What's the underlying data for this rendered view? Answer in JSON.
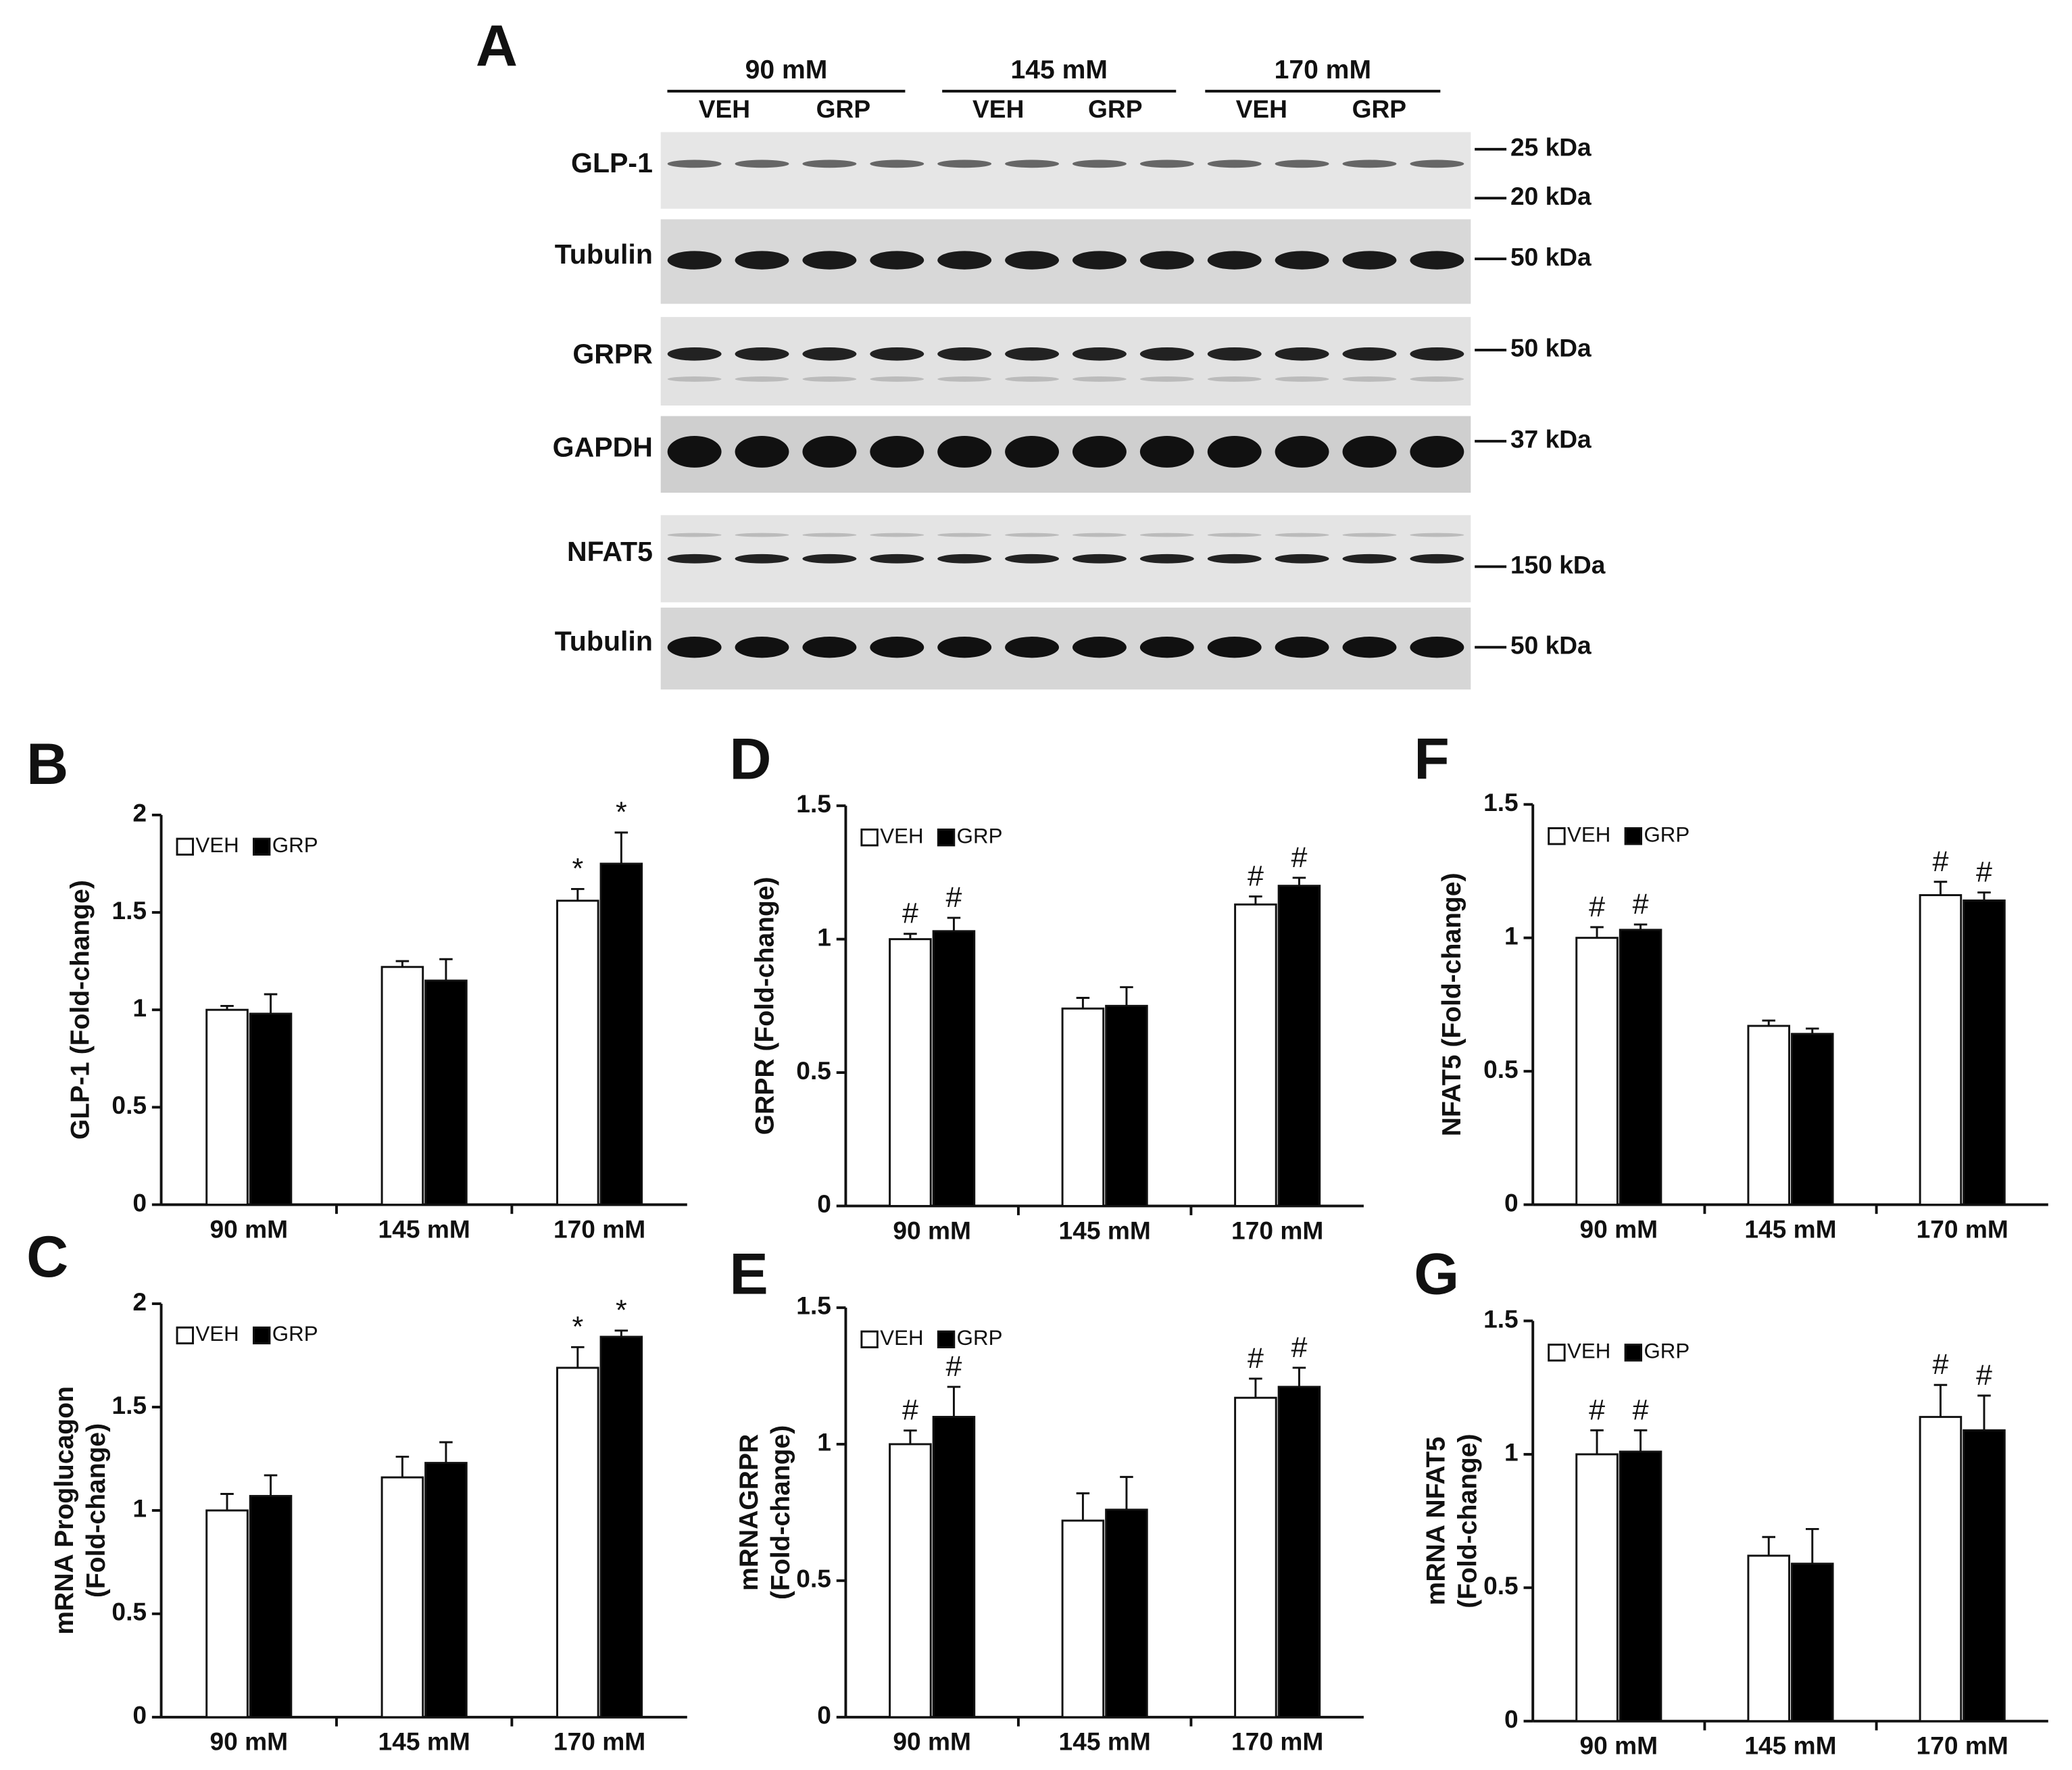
{
  "blot": {
    "label": "A",
    "groups": [
      {
        "name": "90 mM",
        "lanes": [
          "VEH",
          "GRP"
        ]
      },
      {
        "name": "145 mM",
        "lanes": [
          "VEH",
          "GRP"
        ]
      },
      {
        "name": "170 mM",
        "lanes": [
          "VEH",
          "GRP"
        ]
      }
    ],
    "rows": [
      {
        "name": "GLP-1",
        "markers": [
          "25 kDa",
          "20 kDa"
        ]
      },
      {
        "name": "Tubulin",
        "markers": [
          "50 kDa"
        ]
      },
      {
        "name": "GRPR",
        "markers": [
          "50 kDa"
        ]
      },
      {
        "name": "GAPDH",
        "markers": [
          "37 kDa"
        ]
      },
      {
        "name": "NFAT5",
        "markers": [
          "150 kDa"
        ]
      },
      {
        "name": "Tubulin",
        "markers": [
          "50 kDa"
        ]
      }
    ]
  },
  "chart_data": [
    {
      "type": "bar",
      "label": "B",
      "y_label": [
        "GLP-1 (Fold-change)"
      ],
      "categories": [
        "90 mM",
        "145 mM",
        "170 mM"
      ],
      "series": [
        {
          "name": "VEH",
          "color": "#ffffff",
          "values": [
            1.0,
            1.22,
            1.56
          ],
          "errors": [
            0.02,
            0.03,
            0.06
          ],
          "markers": [
            null,
            null,
            "*"
          ]
        },
        {
          "name": "GRP",
          "color": "#000000",
          "values": [
            0.98,
            1.15,
            1.75
          ],
          "errors": [
            0.1,
            0.11,
            0.16
          ],
          "markers": [
            null,
            null,
            "*"
          ]
        }
      ],
      "ylim": [
        0,
        2
      ],
      "yticks": [
        0,
        0.5,
        1,
        1.5,
        2
      ]
    },
    {
      "type": "bar",
      "label": "C",
      "y_label": [
        "mRNA Proglucagon",
        "(Fold-change)"
      ],
      "categories": [
        "90 mM",
        "145 mM",
        "170 mM"
      ],
      "series": [
        {
          "name": "VEH",
          "color": "#ffffff",
          "values": [
            1.0,
            1.16,
            1.69
          ],
          "errors": [
            0.08,
            0.1,
            0.1
          ],
          "markers": [
            null,
            null,
            "*"
          ]
        },
        {
          "name": "GRP",
          "color": "#000000",
          "values": [
            1.07,
            1.23,
            1.84
          ],
          "errors": [
            0.1,
            0.1,
            0.03
          ],
          "markers": [
            null,
            null,
            "*"
          ]
        }
      ],
      "ylim": [
        0,
        2
      ],
      "yticks": [
        0,
        0.5,
        1,
        1.5,
        2
      ]
    },
    {
      "type": "bar",
      "label": "D",
      "y_label": [
        "GRPR (Fold-change)"
      ],
      "categories": [
        "90 mM",
        "145 mM",
        "170 mM"
      ],
      "series": [
        {
          "name": "VEH",
          "color": "#ffffff",
          "values": [
            1.0,
            0.74,
            1.13
          ],
          "errors": [
            0.02,
            0.04,
            0.03
          ],
          "markers": [
            "#",
            null,
            "#"
          ]
        },
        {
          "name": "GRP",
          "color": "#000000",
          "values": [
            1.03,
            0.75,
            1.2
          ],
          "errors": [
            0.05,
            0.07,
            0.03
          ],
          "markers": [
            "#",
            null,
            "#"
          ]
        }
      ],
      "ylim": [
        0,
        1.5
      ],
      "yticks": [
        0,
        0.5,
        1,
        1.5
      ]
    },
    {
      "type": "bar",
      "label": "E",
      "y_label": [
        "mRNAGRPR",
        "(Fold-change)"
      ],
      "categories": [
        "90 mM",
        "145 mM",
        "170 mM"
      ],
      "series": [
        {
          "name": "VEH",
          "color": "#ffffff",
          "values": [
            1.0,
            0.72,
            1.17
          ],
          "errors": [
            0.05,
            0.1,
            0.07
          ],
          "markers": [
            "#",
            null,
            "#"
          ]
        },
        {
          "name": "GRP",
          "color": "#000000",
          "values": [
            1.1,
            0.76,
            1.21
          ],
          "errors": [
            0.11,
            0.12,
            0.07
          ],
          "markers": [
            "#",
            null,
            "#"
          ]
        }
      ],
      "ylim": [
        0,
        1.5
      ],
      "yticks": [
        0,
        0.5,
        1,
        1.5
      ]
    },
    {
      "type": "bar",
      "label": "F",
      "y_label": [
        "NFAT5 (Fold-change)"
      ],
      "categories": [
        "90 mM",
        "145 mM",
        "170 mM"
      ],
      "series": [
        {
          "name": "VEH",
          "color": "#ffffff",
          "values": [
            1.0,
            0.67,
            1.16
          ],
          "errors": [
            0.04,
            0.02,
            0.05
          ],
          "markers": [
            "#",
            null,
            "#"
          ]
        },
        {
          "name": "GRP",
          "color": "#000000",
          "values": [
            1.03,
            0.64,
            1.14
          ],
          "errors": [
            0.02,
            0.02,
            0.03
          ],
          "markers": [
            "#",
            null,
            "#"
          ]
        }
      ],
      "ylim": [
        0,
        1.5
      ],
      "yticks": [
        0,
        0.5,
        1,
        1.5
      ]
    },
    {
      "type": "bar",
      "label": "G",
      "y_label": [
        "mRNA NFAT5",
        "(Fold-change)"
      ],
      "categories": [
        "90 mM",
        "145 mM",
        "170 mM"
      ],
      "series": [
        {
          "name": "VEH",
          "color": "#ffffff",
          "values": [
            1.0,
            0.62,
            1.14
          ],
          "errors": [
            0.09,
            0.07,
            0.12
          ],
          "markers": [
            "#",
            null,
            "#"
          ]
        },
        {
          "name": "GRP",
          "color": "#000000",
          "values": [
            1.01,
            0.59,
            1.09
          ],
          "errors": [
            0.08,
            0.13,
            0.13
          ],
          "markers": [
            "#",
            null,
            "#"
          ]
        }
      ],
      "ylim": [
        0,
        1.5
      ],
      "yticks": [
        0,
        0.5,
        1,
        1.5
      ]
    }
  ]
}
